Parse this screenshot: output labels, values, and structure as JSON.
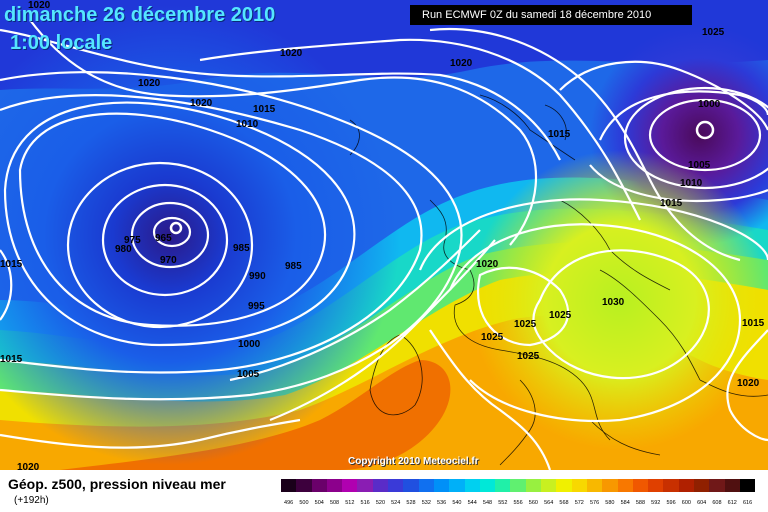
{
  "header": {
    "date_line": "dimanche 26 décembre 2010",
    "time_line": "1:00 locale",
    "run_info": "Run ECMWF 0Z du samedi 18 décembre 2010"
  },
  "footer": {
    "title": "Géop. z500, pression niveau mer",
    "subtitle": "(+192h)",
    "copyright": "Copyright 2010 Meteociel.fr"
  },
  "isobar_labels": [
    "1020",
    "1025",
    "1020",
    "1020",
    "1020",
    "1015",
    "1010",
    "1020",
    "1015",
    "1000",
    "1005",
    "1010",
    "1015",
    "965",
    "975",
    "980",
    "970",
    "985",
    "990",
    "985",
    "995",
    "1000",
    "1005",
    "1015",
    "1015",
    "1020",
    "1025",
    "1025",
    "1030",
    "1025",
    "1025",
    "1015",
    "1020",
    "1020"
  ],
  "scale": {
    "labels": [
      "496",
      "500",
      "504",
      "508",
      "512",
      "516",
      "520",
      "524",
      "528",
      "532",
      "536",
      "540",
      "544",
      "548",
      "552",
      "556",
      "560",
      "564",
      "568",
      "572",
      "576",
      "580",
      "584",
      "588",
      "592",
      "596",
      "600",
      "604",
      "608",
      "612",
      "616"
    ],
    "colors": [
      "#1a001a",
      "#3d003d",
      "#6a006a",
      "#8c008c",
      "#b000b0",
      "#8a1db3",
      "#5a2cc8",
      "#3a3ad8",
      "#2050e0",
      "#1070f0",
      "#0090f8",
      "#00b0f8",
      "#00d0f0",
      "#00e8d8",
      "#20f0a8",
      "#60f070",
      "#98f040",
      "#c8f020",
      "#f0f000",
      "#f8d800",
      "#f8b800",
      "#f89800",
      "#f87800",
      "#f05800",
      "#e04000",
      "#c83000",
      "#b02000",
      "#902000",
      "#701818",
      "#501010",
      "#000000"
    ]
  }
}
